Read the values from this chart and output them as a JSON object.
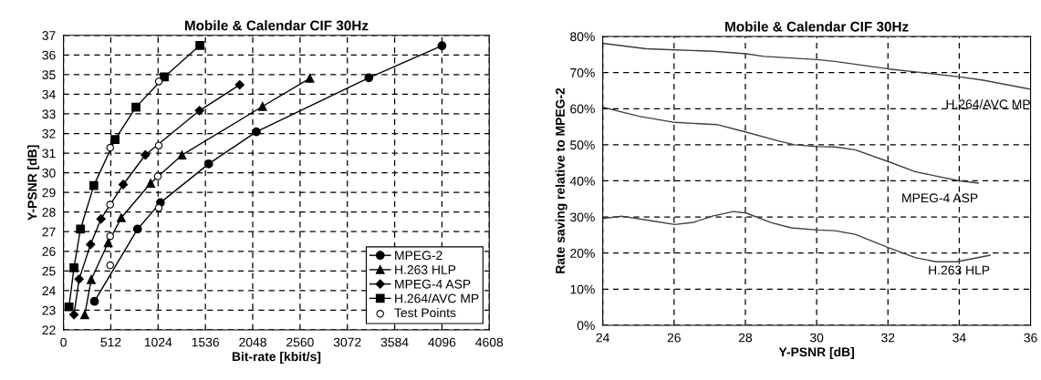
{
  "chart_data": [
    {
      "type": "line",
      "title": "Mobile & Calendar CIF 30Hz",
      "xlabel": "Bit-rate [kbit/s]",
      "ylabel": "Y-PSNR [dB]",
      "xlim": [
        0,
        4608
      ],
      "xticks": [
        0,
        512,
        1024,
        1536,
        2048,
        2560,
        3072,
        3584,
        4096,
        4608
      ],
      "ylim": [
        22,
        37
      ],
      "yticks": [
        22,
        23,
        24,
        25,
        26,
        27,
        28,
        29,
        30,
        31,
        32,
        33,
        34,
        35,
        36,
        37
      ],
      "grid": true,
      "legend": "bottom right",
      "line_style": "solid",
      "series": [
        {
          "name": "MPEG-2",
          "color": "#000000",
          "marker": "circle",
          "x": [
            335,
            801,
            1049,
            1571,
            2087,
            3305,
            4096
          ],
          "values": [
            23.45,
            27.13,
            28.48,
            30.45,
            32.09,
            34.84,
            36.47
          ]
        },
        {
          "name": "H.263 HLP",
          "color": "#000000",
          "marker": "triangle",
          "x": [
            230,
            300,
            484,
            625,
            943,
            1282,
            2154,
            2666
          ],
          "values": [
            22.77,
            24.56,
            26.44,
            27.71,
            29.47,
            30.9,
            33.38,
            34.81
          ]
        },
        {
          "name": "MPEG-4 ASP",
          "color": "#000000",
          "marker": "diamond",
          "x": [
            113,
            169,
            293,
            406,
            646,
            886,
            1472,
            1907
          ],
          "values": [
            22.77,
            24.58,
            26.35,
            27.65,
            29.4,
            30.91,
            33.17,
            34.48
          ]
        },
        {
          "name": "H.264/AVC MP",
          "color": "#000000",
          "marker": "square",
          "x": [
            60,
            113,
            184,
            328,
            558,
            784,
            1091,
            1476
          ],
          "values": [
            23.17,
            25.16,
            27.13,
            29.35,
            31.69,
            33.34,
            34.88,
            36.49
          ]
        },
        {
          "name": "Test Points",
          "type": "scatter",
          "color": "#000000",
          "marker": "circle",
          "x": [
            505,
            1031,
            505,
            1031,
            505,
            1021,
            505,
            1031
          ],
          "values": [
            31.28,
            34.65,
            28.38,
            31.39,
            26.77,
            29.82,
            25.29,
            28.21
          ]
        }
      ]
    },
    {
      "type": "line",
      "title": "Mobile & Calendar CIF 30Hz",
      "xlabel": "Y-PSNR [dB]",
      "ylabel": "Rate saving relative to MPEG-2",
      "xlim": [
        24,
        36
      ],
      "xticks": [
        24,
        26,
        28,
        30,
        32,
        34,
        36
      ],
      "ylim": [
        0,
        80
      ],
      "yticks": [
        {
          "value": 0,
          "label": "0%"
        },
        {
          "value": 10,
          "label": "10%"
        },
        {
          "value": 20,
          "label": "20%"
        },
        {
          "value": 30,
          "label": "30%"
        },
        {
          "value": 40,
          "label": "40%"
        },
        {
          "value": 50,
          "label": "50%"
        },
        {
          "value": 60,
          "label": "60%"
        },
        {
          "value": 70,
          "label": "70%"
        },
        {
          "value": 80,
          "label": "80%"
        }
      ],
      "grid": true,
      "legend": false,
      "line_style": "solid",
      "marker": "none",
      "series": [
        {
          "name": "H.264/AVC MP",
          "color": "#404040",
          "x": [
            24,
            25.21,
            26.02,
            27.1,
            28.02,
            28.52,
            30.01,
            30.51,
            32.02,
            32.78,
            34.01,
            34.67,
            36
          ],
          "values": [
            78.1,
            76.6,
            76.3,
            75.9,
            75.2,
            74.5,
            73.6,
            73.1,
            71.0,
            70.2,
            68.8,
            67.9,
            65.4
          ]
        },
        {
          "name": "MPEG-4 ASP",
          "color": "#404040",
          "x": [
            24,
            25.02,
            26.02,
            27.2,
            28.02,
            29.0,
            29.38,
            30.01,
            30.51,
            31.08,
            32.02,
            32.78,
            34.01,
            34.53
          ],
          "values": [
            60.4,
            57.9,
            56.2,
            55.6,
            53.5,
            50.9,
            50.0,
            49.5,
            49.4,
            48.6,
            45.3,
            42.5,
            40.0,
            39.4
          ]
        },
        {
          "name": "H.263 HLP",
          "color": "#404040",
          "x": [
            24,
            24.55,
            25.4,
            26.02,
            26.54,
            27.1,
            27.67,
            28.02,
            28.71,
            29.28,
            30.01,
            30.51,
            31.08,
            32.02,
            32.78,
            33.35,
            33.92,
            34.86
          ],
          "values": [
            29.6,
            30.2,
            28.9,
            27.9,
            28.5,
            30.3,
            31.5,
            31.1,
            28.5,
            27.0,
            26.4,
            26.2,
            25.2,
            21.5,
            18.7,
            17.6,
            17.6,
            19.4
          ]
        }
      ]
    }
  ]
}
